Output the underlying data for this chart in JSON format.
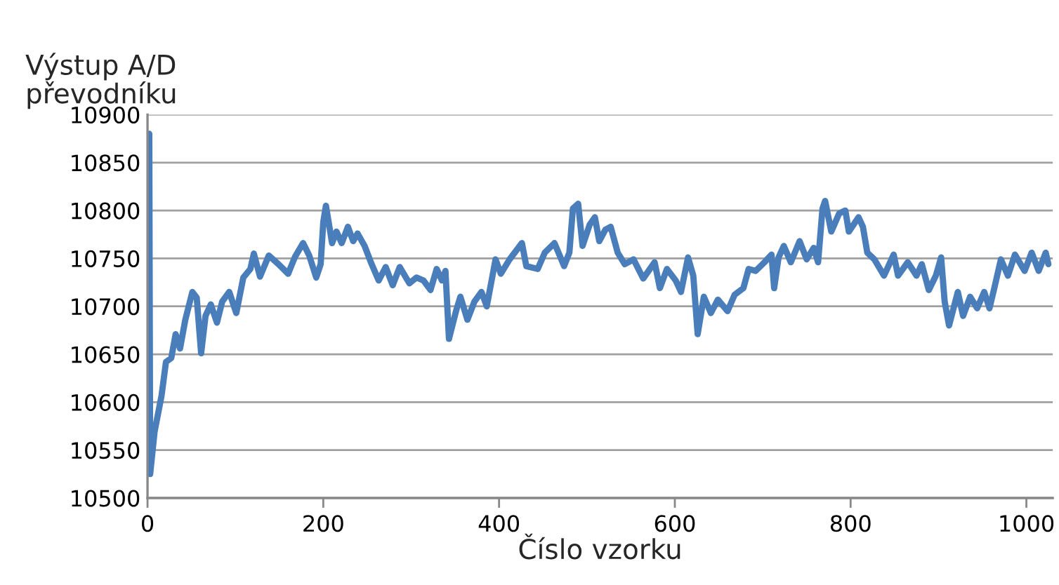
{
  "chart_data": {
    "type": "line",
    "xlabel": "Číslo vzorku",
    "ylabel": "Výstup A/D\npřevodníku",
    "xlim": [
      0,
      1030
    ],
    "xticks": [
      0,
      200,
      400,
      600,
      800,
      1000
    ],
    "ylim": [
      10500,
      10900
    ],
    "yticks": [
      10500,
      10550,
      10600,
      10650,
      10700,
      10750,
      10800,
      10850,
      10900
    ],
    "grid": "y",
    "legend": false,
    "marker": "none",
    "line_style": "solid",
    "series": [
      {
        "color": "#4a7ebb",
        "x": [
          0,
          2,
          3,
          8,
          16,
          21,
          27,
          32,
          37,
          43,
          51,
          56,
          61,
          66,
          72,
          79,
          85,
          93,
          101,
          109,
          117,
          121,
          128,
          138,
          149,
          160,
          168,
          177,
          184,
          192,
          197,
          200,
          203,
          210,
          215,
          221,
          228,
          234,
          239,
          247,
          255,
          263,
          271,
          279,
          287,
          298,
          306,
          314,
          322,
          329,
          335,
          339,
          343,
          351,
          356,
          364,
          372,
          380,
          386,
          396,
          402,
          412,
          426,
          431,
          444,
          452,
          463,
          474,
          480,
          484,
          490,
          495,
          503,
          509,
          514,
          521,
          527,
          535,
          543,
          553,
          564,
          577,
          583,
          591,
          601,
          607,
          615,
          621,
          626,
          633,
          641,
          649,
          660,
          668,
          678,
          684,
          692,
          702,
          710,
          713,
          718,
          724,
          732,
          742,
          750,
          758,
          763,
          768,
          771,
          778,
          787,
          794,
          798,
          809,
          814,
          819,
          827,
          838,
          849,
          854,
          865,
          875,
          881,
          889,
          897,
          903,
          907,
          912,
          922,
          928,
          936,
          944,
          952,
          958,
          963,
          971,
          979,
          987,
          998,
          1006,
          1014,
          1022,
          1025
        ],
        "values": [
          10560,
          10880,
          10525,
          10569,
          10607,
          10642,
          10646,
          10671,
          10656,
          10686,
          10715,
          10709,
          10651,
          10690,
          10702,
          10683,
          10705,
          10715,
          10693,
          10730,
          10739,
          10755,
          10731,
          10753,
          10744,
          10734,
          10752,
          10766,
          10753,
          10730,
          10744,
          10788,
          10805,
          10766,
          10778,
          10766,
          10783,
          10768,
          10776,
          10763,
          10744,
          10727,
          10741,
          10722,
          10741,
          10724,
          10730,
          10727,
          10717,
          10739,
          10727,
          10737,
          10666,
          10695,
          10710,
          10686,
          10705,
          10715,
          10700,
          10749,
          10734,
          10749,
          10766,
          10742,
          10739,
          10756,
          10766,
          10742,
          10756,
          10802,
          10807,
          10763,
          10785,
          10793,
          10768,
          10780,
          10783,
          10756,
          10744,
          10749,
          10729,
          10746,
          10719,
          10739,
          10727,
          10715,
          10751,
          10732,
          10671,
          10710,
          10693,
          10707,
          10695,
          10712,
          10719,
          10739,
          10737,
          10746,
          10754,
          10719,
          10751,
          10763,
          10746,
          10768,
          10749,
          10761,
          10746,
          10802,
          10810,
          10778,
          10797,
          10800,
          10778,
          10793,
          10783,
          10756,
          10749,
          10732,
          10754,
          10732,
          10746,
          10732,
          10744,
          10717,
          10732,
          10751,
          10705,
          10680,
          10715,
          10690,
          10710,
          10698,
          10715,
          10698,
          10717,
          10749,
          10732,
          10754,
          10737,
          10756,
          10737,
          10756,
          10744
        ]
      }
    ]
  }
}
